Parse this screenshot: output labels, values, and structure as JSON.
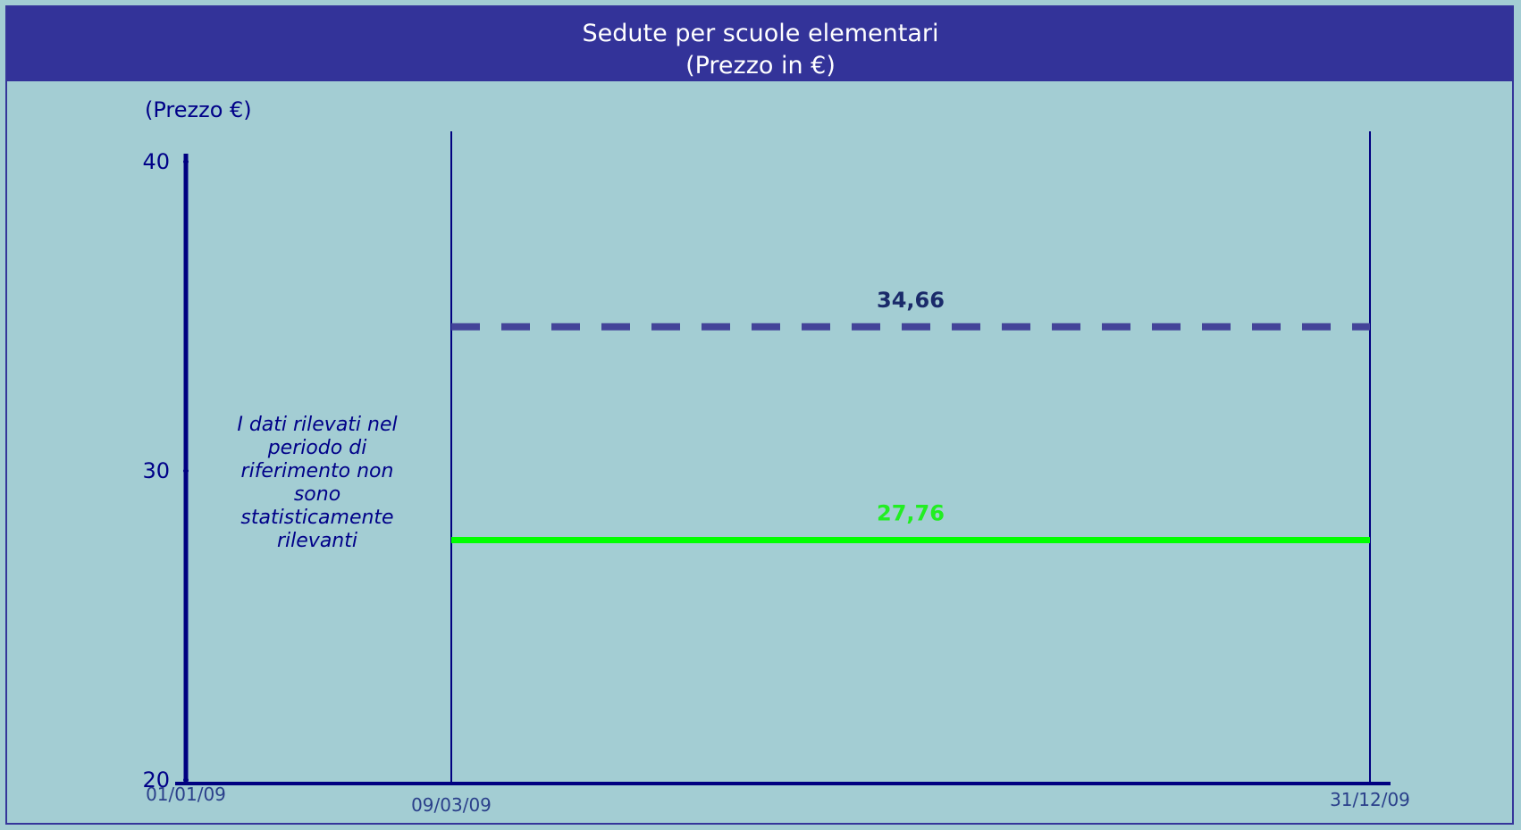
{
  "chart_data": {
    "type": "line",
    "title": "Sedute per scuole elementari",
    "subtitle": "(Prezzo in €)",
    "ylabel": "(Prezzo €)",
    "xlabel": "",
    "ylim": [
      20,
      40
    ],
    "yticks": [
      {
        "value": 40,
        "label": "40"
      },
      {
        "value": 30,
        "label": "30"
      },
      {
        "value": 20,
        "label": "20"
      }
    ],
    "x_dates": [
      {
        "date": "2009-01-01",
        "label": "01/01/09"
      },
      {
        "date": "2009-03-09",
        "label": "09/03/09"
      },
      {
        "date": "2009-12-31",
        "label": "31/12/09"
      }
    ],
    "vertical_markers": [
      "2009-03-09",
      "2009-12-31"
    ],
    "series": [
      {
        "style": "dashed",
        "color": "#444499",
        "x_start": "2009-03-09",
        "x_end": "2009-12-31",
        "value": 34.66,
        "label": "34,66",
        "label_color": "#1a2a6a"
      },
      {
        "style": "solid",
        "color": "#00ff00",
        "x_start": "2009-03-09",
        "x_end": "2009-12-31",
        "value": 27.76,
        "label": "27,76",
        "label_color": "#22ee22"
      }
    ],
    "annotation": "I dati rilevati nel periodo di riferimento non sono statisticamente rilevanti",
    "grid": false,
    "legend": "none"
  }
}
